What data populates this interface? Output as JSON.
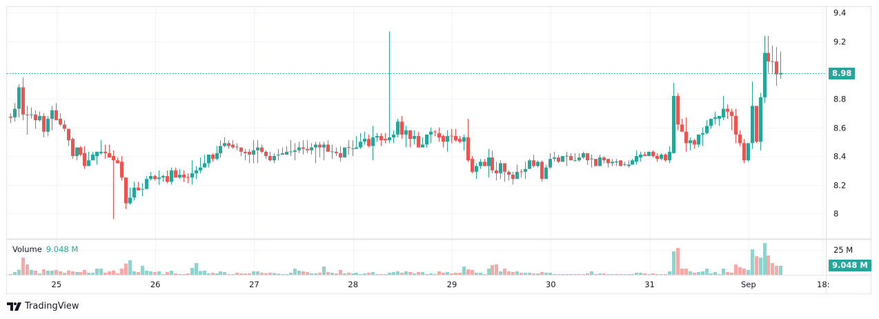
{
  "colors": {
    "up": "#26a69a",
    "down": "#ef5350",
    "up_volume": "#92d2cc",
    "down_volume": "#f7a9a7",
    "last_price": "#26a69a",
    "grid": "#f0f3fa",
    "border": "#e0e3eb"
  },
  "legend": {
    "label": "Volume",
    "value": "9.048 M"
  },
  "price_axis": {
    "ticks": [
      8,
      8.2,
      8.4,
      8.6,
      8.8,
      9.2,
      9.4
    ],
    "tick_labels": [
      "8",
      "8.2",
      "8.4",
      "8.6",
      "8.8",
      "9.2",
      "9.4"
    ],
    "last_price_label": "8.98"
  },
  "volume_axis": {
    "tick_label": "25 M",
    "tick_value": 25,
    "last_volume_label": "9.048 M"
  },
  "time_axis": {
    "labels": [
      {
        "text": "25",
        "bar": 11.2
      },
      {
        "text": "26",
        "bar": 35.2
      },
      {
        "text": "27",
        "bar": 59.2
      },
      {
        "text": "28",
        "bar": 83.2
      },
      {
        "text": "29",
        "bar": 107.2
      },
      {
        "text": "30",
        "bar": 131.2
      },
      {
        "text": "31",
        "bar": 155.2
      },
      {
        "text": "Sep",
        "bar": 179.2
      },
      {
        "text": "18:",
        "bar": 197.2
      }
    ]
  },
  "branding": {
    "logo_text": "TradingView"
  },
  "chart_data": {
    "type": "candlestick",
    "ylim": [
      7.9,
      9.45
    ],
    "last_price": 8.98,
    "volume_unit": "M",
    "fields": [
      "open",
      "high",
      "low",
      "close",
      "volume"
    ],
    "candles": [
      [
        8.675,
        8.7,
        8.63,
        8.667,
        0.5
      ],
      [
        8.67,
        8.77,
        8.64,
        8.73,
        2.8
      ],
      [
        8.73,
        8.9,
        8.67,
        8.88,
        5.1
      ],
      [
        8.88,
        8.95,
        8.65,
        8.69,
        17.3
      ],
      [
        8.69,
        8.75,
        8.55,
        8.685,
        10.4
      ],
      [
        8.685,
        8.74,
        8.66,
        8.69,
        4.9
      ],
      [
        8.69,
        8.72,
        8.59,
        8.65,
        4.2
      ],
      [
        8.65,
        8.71,
        8.64,
        8.68,
        1.4
      ],
      [
        8.68,
        8.7,
        8.53,
        8.57,
        5.5
      ],
      [
        8.57,
        8.68,
        8.54,
        8.66,
        4.2
      ],
      [
        8.66,
        8.75,
        8.58,
        8.72,
        4.2
      ],
      [
        8.72,
        8.77,
        8.65,
        8.65,
        4.9
      ],
      [
        8.66,
        8.7,
        8.61,
        8.62,
        3.5
      ],
      [
        8.62,
        8.65,
        8.57,
        8.59,
        2.1
      ],
      [
        8.59,
        8.59,
        8.47,
        8.51,
        4.4
      ],
      [
        8.52,
        8.53,
        8.38,
        8.4,
        3.5
      ],
      [
        8.4,
        8.46,
        8.37,
        8.46,
        2.8
      ],
      [
        8.46,
        8.47,
        8.4,
        8.41,
        2.8
      ],
      [
        8.42,
        8.47,
        8.31,
        8.33,
        4.9
      ],
      [
        8.33,
        8.43,
        8.33,
        8.37,
        2.1
      ],
      [
        8.37,
        8.43,
        8.37,
        8.41,
        2.1
      ],
      [
        8.4,
        8.43,
        8.34,
        8.43,
        6.2
      ],
      [
        8.42,
        8.51,
        8.41,
        8.43,
        6.2
      ],
      [
        8.43,
        8.48,
        8.38,
        8.42,
        2.1
      ],
      [
        8.42,
        8.48,
        8.39,
        8.39,
        3.5
      ],
      [
        8.4,
        8.44,
        7.96,
        8.37,
        4.4
      ],
      [
        8.37,
        8.39,
        8.35,
        8.35,
        1.4
      ],
      [
        8.36,
        8.4,
        8.23,
        8.25,
        6.2
      ],
      [
        8.25,
        8.25,
        8.03,
        8.07,
        11.3
      ],
      [
        8.07,
        8.18,
        8.06,
        8.11,
        14.6
      ],
      [
        8.11,
        8.22,
        8.09,
        8.18,
        3.5
      ],
      [
        8.18,
        8.22,
        8.16,
        8.16,
        2.8
      ],
      [
        8.165,
        8.21,
        8.12,
        8.17,
        9.0
      ],
      [
        8.17,
        8.26,
        8.17,
        8.24,
        4.2
      ],
      [
        8.24,
        8.29,
        8.23,
        8.26,
        3.5
      ],
      [
        8.26,
        8.27,
        8.23,
        8.24,
        2.8
      ],
      [
        8.24,
        8.3,
        8.2,
        8.25,
        3.5
      ],
      [
        8.25,
        8.27,
        8.22,
        8.26,
        0.7
      ],
      [
        8.26,
        8.3,
        8.21,
        8.22,
        2.8
      ],
      [
        8.22,
        8.32,
        8.2,
        8.3,
        4.2
      ],
      [
        8.3,
        8.32,
        8.25,
        8.25,
        1.4
      ],
      [
        8.25,
        8.31,
        8.24,
        8.27,
        0.5
      ],
      [
        8.27,
        8.3,
        8.22,
        8.25,
        0.7
      ],
      [
        8.252,
        8.28,
        8.21,
        8.248,
        1.4
      ],
      [
        8.25,
        8.37,
        8.2,
        8.28,
        6.9
      ],
      [
        8.28,
        8.33,
        8.24,
        8.3,
        11.8
      ],
      [
        8.3,
        8.39,
        8.28,
        8.32,
        3.9
      ],
      [
        8.32,
        8.41,
        8.32,
        8.35,
        4.2
      ],
      [
        8.35,
        8.41,
        8.32,
        8.41,
        1.4
      ],
      [
        8.41,
        8.42,
        8.36,
        8.38,
        2.1
      ],
      [
        8.38,
        8.47,
        8.37,
        8.42,
        1.4
      ],
      [
        8.42,
        8.51,
        8.39,
        8.47,
        3.5
      ],
      [
        8.47,
        8.53,
        8.46,
        8.49,
        2.8
      ],
      [
        8.49,
        8.51,
        8.45,
        8.47,
        0.7
      ],
      [
        8.48,
        8.51,
        8.45,
        8.46,
        0.7
      ],
      [
        8.465,
        8.49,
        8.44,
        8.46,
        2.1
      ],
      [
        8.46,
        8.46,
        8.4,
        8.43,
        1.4
      ],
      [
        8.43,
        8.45,
        8.37,
        8.42,
        1.4
      ],
      [
        8.43,
        8.45,
        8.35,
        8.41,
        1.4
      ],
      [
        8.41,
        8.51,
        8.35,
        8.44,
        3.5
      ],
      [
        8.44,
        8.51,
        8.35,
        8.46,
        3.5
      ],
      [
        8.46,
        8.48,
        8.42,
        8.43,
        2.1
      ],
      [
        8.43,
        8.44,
        8.38,
        8.4,
        1.6
      ],
      [
        8.4,
        8.43,
        8.36,
        8.37,
        2.1
      ],
      [
        8.37,
        8.42,
        8.35,
        8.4,
        1.8
      ],
      [
        8.405,
        8.45,
        8.37,
        8.41,
        1.2
      ],
      [
        8.41,
        8.46,
        8.41,
        8.42,
        0.7
      ],
      [
        8.41,
        8.47,
        8.41,
        8.43,
        0.7
      ],
      [
        8.428,
        8.51,
        8.4,
        8.432,
        2.1
      ],
      [
        8.43,
        8.49,
        8.37,
        8.44,
        6.2
      ],
      [
        8.44,
        8.5,
        8.42,
        8.46,
        4.2
      ],
      [
        8.46,
        8.51,
        8.41,
        8.45,
        3.5
      ],
      [
        8.45,
        8.51,
        8.42,
        8.44,
        2.8
      ],
      [
        8.44,
        8.49,
        8.41,
        8.46,
        1.4
      ],
      [
        8.46,
        8.5,
        8.35,
        8.48,
        1.4
      ],
      [
        8.48,
        8.5,
        8.39,
        8.46,
        2.1
      ],
      [
        8.46,
        8.5,
        8.37,
        8.48,
        8.3
      ],
      [
        8.48,
        8.51,
        8.43,
        8.43,
        2.8
      ],
      [
        8.428,
        8.48,
        8.38,
        8.432,
        2.1
      ],
      [
        8.43,
        8.46,
        8.4,
        8.42,
        1.4
      ],
      [
        8.42,
        8.47,
        8.36,
        8.39,
        4.9
      ],
      [
        8.39,
        8.46,
        8.39,
        8.46,
        1.4
      ],
      [
        8.462,
        8.51,
        8.41,
        8.458,
        2.1
      ],
      [
        8.448,
        8.51,
        8.4,
        8.452,
        1.4
      ],
      [
        8.45,
        8.54,
        8.45,
        8.46,
        2.1
      ],
      [
        8.46,
        8.56,
        8.45,
        8.5,
        0.7
      ],
      [
        8.5,
        8.57,
        8.48,
        8.52,
        1.4
      ],
      [
        8.52,
        8.55,
        8.46,
        8.47,
        2.1
      ],
      [
        8.47,
        8.61,
        8.37,
        8.53,
        2.8
      ],
      [
        8.53,
        8.56,
        8.5,
        8.54,
        0.7
      ],
      [
        8.54,
        8.56,
        8.47,
        8.51,
        0.7
      ],
      [
        8.52,
        8.56,
        8.49,
        8.51,
        0.7
      ],
      [
        8.51,
        9.27,
        8.49,
        8.53,
        2.1
      ],
      [
        8.53,
        8.58,
        8.49,
        8.55,
        2.8
      ],
      [
        8.55,
        8.66,
        8.53,
        8.64,
        3.5
      ],
      [
        8.64,
        8.68,
        8.52,
        8.55,
        2.1
      ],
      [
        8.55,
        8.61,
        8.46,
        8.58,
        3.5
      ],
      [
        8.58,
        8.58,
        8.46,
        8.52,
        2.8
      ],
      [
        8.52,
        8.58,
        8.48,
        8.54,
        1.4
      ],
      [
        8.54,
        8.57,
        8.46,
        8.46,
        2.8
      ],
      [
        8.46,
        8.53,
        8.46,
        8.48,
        2.8
      ],
      [
        8.48,
        8.55,
        8.46,
        8.55,
        0.7
      ],
      [
        8.55,
        8.6,
        8.49,
        8.57,
        1.4
      ],
      [
        8.572,
        8.58,
        8.54,
        8.568,
        0.7
      ],
      [
        8.56,
        8.6,
        8.5,
        8.53,
        3.5
      ],
      [
        8.54,
        8.55,
        8.46,
        8.5,
        2.1
      ],
      [
        8.5,
        8.58,
        8.43,
        8.54,
        2.8
      ],
      [
        8.542,
        8.59,
        8.49,
        8.538,
        1.4
      ],
      [
        8.54,
        8.59,
        8.5,
        8.51,
        2.1
      ],
      [
        8.52,
        8.54,
        8.49,
        8.5,
        2.1
      ],
      [
        8.5,
        8.55,
        8.44,
        8.53,
        8.3
      ],
      [
        8.53,
        8.66,
        8.36,
        8.37,
        5.5
      ],
      [
        8.38,
        8.4,
        8.28,
        8.29,
        4.9
      ],
      [
        8.29,
        8.35,
        8.24,
        8.33,
        2.1
      ],
      [
        8.33,
        8.38,
        8.31,
        8.36,
        2.1
      ],
      [
        8.36,
        8.38,
        8.33,
        8.33,
        0.7
      ],
      [
        8.33,
        8.45,
        8.25,
        8.39,
        6.2
      ],
      [
        8.39,
        8.44,
        8.28,
        8.3,
        9.7
      ],
      [
        8.3,
        8.36,
        8.23,
        8.28,
        10.4
      ],
      [
        8.28,
        8.37,
        8.24,
        8.35,
        3.5
      ],
      [
        8.35,
        8.35,
        8.22,
        8.29,
        6.2
      ],
      [
        8.29,
        8.3,
        8.23,
        8.27,
        3.5
      ],
      [
        8.27,
        8.29,
        8.2,
        8.24,
        2.8
      ],
      [
        8.24,
        8.34,
        8.24,
        8.29,
        3.5
      ],
      [
        8.292,
        8.31,
        8.25,
        8.288,
        2.1
      ],
      [
        8.29,
        8.36,
        8.24,
        8.31,
        2.1
      ],
      [
        8.31,
        8.38,
        8.31,
        8.37,
        2.1
      ],
      [
        8.37,
        8.41,
        8.32,
        8.33,
        1.4
      ],
      [
        8.33,
        8.37,
        8.32,
        8.36,
        1.4
      ],
      [
        8.36,
        8.37,
        8.22,
        8.24,
        2.8
      ],
      [
        8.24,
        8.34,
        8.24,
        8.32,
        2.1
      ],
      [
        8.32,
        8.42,
        8.31,
        8.38,
        2.1
      ],
      [
        8.38,
        8.43,
        8.36,
        8.39,
        0.7
      ],
      [
        8.39,
        8.41,
        8.35,
        8.36,
        0.7
      ],
      [
        8.36,
        8.4,
        8.36,
        8.4,
        0.7
      ],
      [
        8.398,
        8.43,
        8.33,
        8.402,
        0.7
      ],
      [
        8.4,
        8.42,
        8.37,
        8.37,
        0.7
      ],
      [
        8.368,
        8.42,
        8.36,
        8.372,
        0.7
      ],
      [
        8.37,
        8.42,
        8.36,
        8.39,
        0.7
      ],
      [
        8.39,
        8.43,
        8.38,
        8.42,
        0.7
      ],
      [
        8.42,
        8.42,
        8.34,
        8.37,
        1.4
      ],
      [
        8.378,
        8.41,
        8.32,
        8.382,
        3.5
      ],
      [
        8.38,
        8.38,
        8.33,
        8.33,
        0.7
      ],
      [
        8.33,
        8.41,
        8.33,
        8.39,
        1.4
      ],
      [
        8.39,
        8.4,
        8.35,
        8.37,
        1.4
      ],
      [
        8.38,
        8.38,
        8.32,
        8.35,
        0.7
      ],
      [
        8.35,
        8.38,
        8.33,
        8.36,
        0.7
      ],
      [
        8.355,
        8.38,
        8.33,
        8.362,
        0.7
      ],
      [
        8.37,
        8.37,
        8.33,
        8.33,
        0.7
      ],
      [
        8.338,
        8.36,
        8.33,
        8.342,
        0.7
      ],
      [
        8.33,
        8.37,
        8.32,
        8.34,
        0.7
      ],
      [
        8.34,
        8.38,
        8.34,
        8.37,
        0.7
      ],
      [
        8.36,
        8.44,
        8.34,
        8.4,
        2.1
      ],
      [
        8.39,
        8.43,
        8.36,
        8.41,
        2.1
      ],
      [
        8.41,
        8.43,
        8.4,
        8.4,
        1.4
      ],
      [
        8.4,
        8.43,
        8.4,
        8.43,
        0.7
      ],
      [
        8.43,
        8.44,
        8.39,
        8.4,
        1.4
      ],
      [
        8.4,
        8.42,
        8.36,
        8.38,
        0.7
      ],
      [
        8.38,
        8.42,
        8.37,
        8.41,
        0.7
      ],
      [
        8.41,
        8.42,
        8.36,
        8.37,
        0.7
      ],
      [
        8.37,
        8.47,
        8.35,
        8.43,
        3.5
      ],
      [
        8.42,
        8.91,
        8.42,
        8.82,
        23.6
      ],
      [
        8.82,
        8.84,
        8.58,
        8.62,
        27.0
      ],
      [
        8.62,
        8.66,
        8.57,
        8.57,
        6.2
      ],
      [
        8.57,
        8.67,
        8.43,
        8.49,
        6.2
      ],
      [
        8.49,
        8.53,
        8.44,
        8.51,
        3.5
      ],
      [
        8.51,
        8.52,
        8.45,
        8.48,
        2.1
      ],
      [
        8.48,
        8.55,
        8.46,
        8.55,
        2.8
      ],
      [
        8.55,
        8.6,
        8.47,
        8.56,
        3.5
      ],
      [
        8.56,
        8.65,
        8.55,
        8.61,
        6.2
      ],
      [
        8.61,
        8.66,
        8.59,
        8.66,
        1.4
      ],
      [
        8.66,
        8.71,
        8.62,
        8.67,
        2.8
      ],
      [
        8.66,
        8.68,
        8.61,
        8.68,
        0.7
      ],
      [
        8.67,
        8.82,
        8.65,
        8.73,
        6.2
      ],
      [
        8.73,
        8.76,
        8.66,
        8.71,
        2.8
      ],
      [
        8.71,
        8.73,
        8.58,
        8.68,
        2.1
      ],
      [
        8.68,
        8.73,
        8.49,
        8.55,
        10.4
      ],
      [
        8.55,
        8.58,
        8.47,
        8.49,
        7.6
      ],
      [
        8.49,
        8.52,
        8.35,
        8.37,
        6.2
      ],
      [
        8.37,
        8.49,
        8.36,
        8.49,
        4.9
      ],
      [
        8.49,
        8.92,
        8.45,
        8.75,
        25.6
      ],
      [
        8.75,
        8.75,
        8.49,
        8.5,
        18.7
      ],
      [
        8.5,
        8.84,
        8.44,
        8.81,
        17.3
      ],
      [
        8.81,
        9.24,
        8.77,
        9.12,
        31.9
      ],
      [
        9.12,
        9.24,
        8.98,
        9.06,
        19.4
      ],
      [
        9.062,
        9.17,
        8.98,
        9.058,
        11.8
      ],
      [
        9.06,
        9.16,
        8.89,
        8.97,
        9.0
      ],
      [
        8.97,
        9.13,
        8.94,
        8.98,
        9.048
      ]
    ]
  }
}
